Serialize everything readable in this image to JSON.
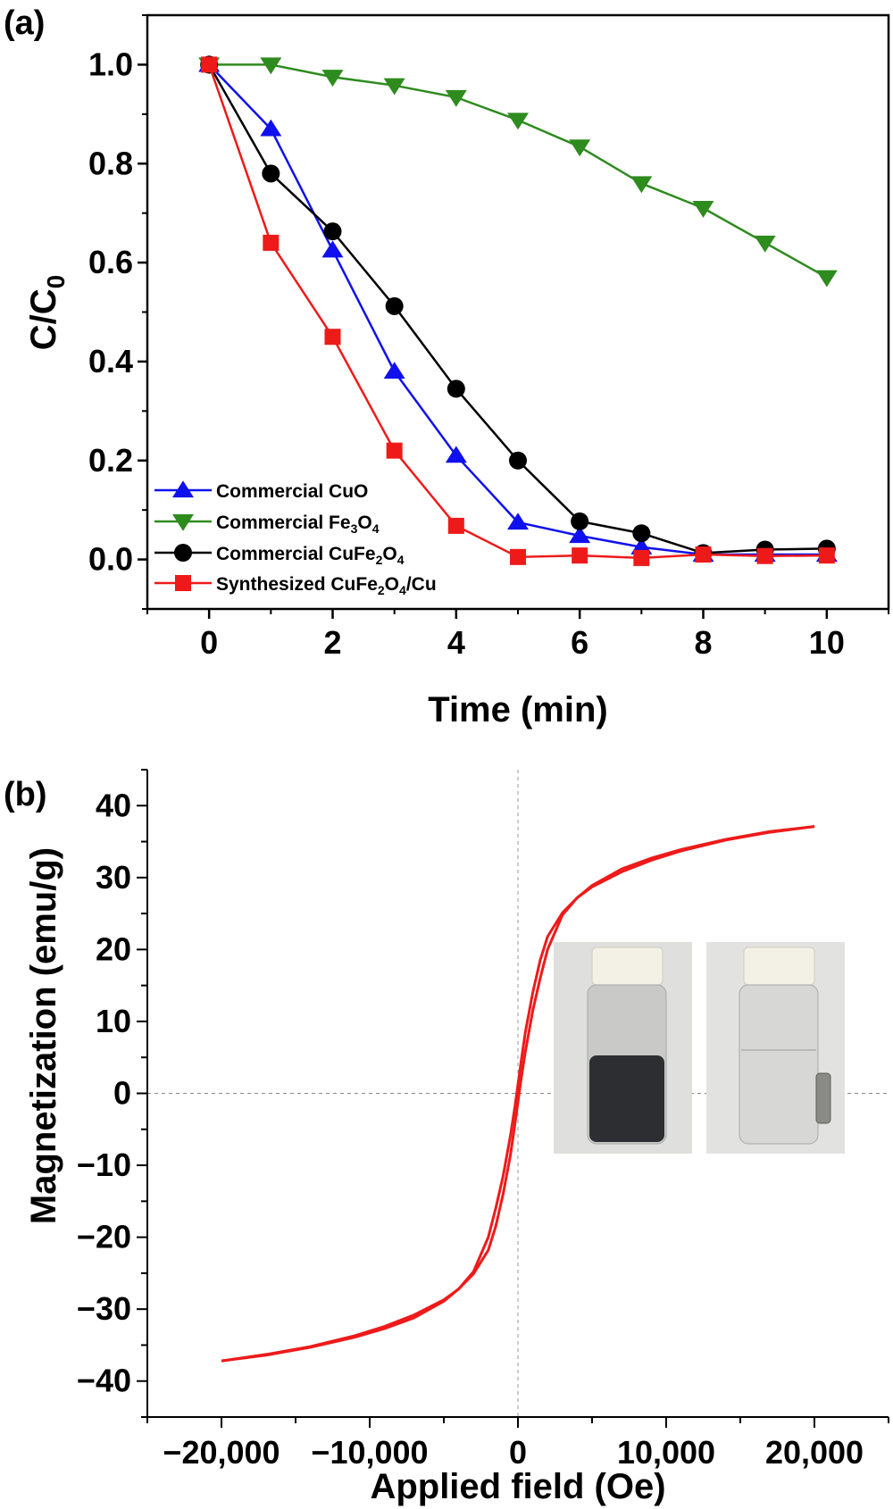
{
  "chart_data": [
    {
      "panel": "(a)",
      "type": "line",
      "xlabel": "Time (min)",
      "ylabel": {
        "main": "C/C",
        "sub": "0"
      },
      "xlim": [
        -1,
        11
      ],
      "ylim": [
        -0.1,
        1.1
      ],
      "xticks": [
        0,
        2,
        4,
        6,
        8,
        10
      ],
      "yticks": [
        0.0,
        0.2,
        0.4,
        0.6,
        0.8,
        1.0
      ],
      "ytick_labels": [
        "0.0",
        "0.2",
        "0.4",
        "0.6",
        "0.8",
        "1.0"
      ],
      "x": [
        0,
        1,
        2,
        3,
        4,
        5,
        6,
        7,
        8,
        9,
        10
      ],
      "legend_position": "bottom-left",
      "series": [
        {
          "name": "Commercial CuO",
          "legend_parts": [
            [
              "Commercial CuO",
              ""
            ]
          ],
          "color": "#1010ee",
          "marker": "triangle-up",
          "values": [
            1.0,
            0.87,
            0.625,
            0.38,
            0.21,
            0.075,
            0.048,
            0.025,
            0.01,
            0.01,
            0.01
          ]
        },
        {
          "name": "Commercial Fe3O4",
          "legend_parts": [
            [
              "Commercial Fe",
              ""
            ],
            [
              "3",
              "sub"
            ],
            [
              "O",
              ""
            ],
            [
              "4",
              "sub"
            ]
          ],
          "color": "#2e8b1e",
          "marker": "triangle-down",
          "values": [
            1.0,
            1.0,
            0.975,
            0.958,
            0.934,
            0.888,
            0.834,
            0.76,
            0.71,
            0.64,
            0.57
          ]
        },
        {
          "name": "Commercial CuFe2O4",
          "legend_parts": [
            [
              "Commercial CuFe",
              ""
            ],
            [
              "2",
              "sub"
            ],
            [
              "O",
              ""
            ],
            [
              "4",
              "sub"
            ]
          ],
          "color": "#000000",
          "marker": "circle",
          "values": [
            1.0,
            0.78,
            0.663,
            0.512,
            0.345,
            0.2,
            0.077,
            0.053,
            0.013,
            0.02,
            0.022
          ]
        },
        {
          "name": "Synthesized CuFe2O4/Cu",
          "legend_parts": [
            [
              "Synthesized CuFe",
              ""
            ],
            [
              "2",
              "sub"
            ],
            [
              "O",
              ""
            ],
            [
              "4",
              "sub"
            ],
            [
              "/Cu",
              ""
            ]
          ],
          "color": "#ee1a1a",
          "marker": "square",
          "values": [
            1.0,
            0.64,
            0.45,
            0.22,
            0.068,
            0.005,
            0.008,
            0.003,
            0.01,
            0.007,
            0.008
          ]
        }
      ]
    },
    {
      "panel": "(b)",
      "type": "line",
      "xlabel": "Applied field (Oe)",
      "ylabel": "Magnetization (emu/g)",
      "xlim": [
        -25000,
        25000
      ],
      "ylim": [
        -45,
        45
      ],
      "xticks": [
        -20000,
        -10000,
        0,
        10000,
        20000
      ],
      "xtick_labels": [
        "−20,000",
        "−10,000",
        "0",
        "10,000",
        "20,000"
      ],
      "yticks": [
        -40,
        -30,
        -20,
        -10,
        0,
        10,
        20,
        30,
        40
      ],
      "ytick_labels": [
        "−40",
        "−30",
        "−20",
        "−10",
        "0",
        "10",
        "20",
        "30",
        "40"
      ],
      "zero_lines": true,
      "color": "#ee1a1a",
      "series": [
        {
          "name": "descending branch",
          "x": [
            20000,
            17000,
            14000,
            11000,
            9000,
            7000,
            5000,
            4000,
            3000,
            2000,
            1500,
            1000,
            500,
            200,
            0,
            -200,
            -500,
            -1000,
            -1500,
            -2000,
            -3000,
            -4000,
            -5000,
            -7000,
            -9000,
            -11000,
            -14000,
            -17000,
            -20000
          ],
          "y": [
            37.1,
            36.3,
            35.2,
            33.7,
            32.4,
            30.8,
            28.7,
            27.2,
            25.1,
            21.8,
            18.5,
            14.0,
            8.5,
            4.2,
            1.2,
            -1.8,
            -5.8,
            -11.5,
            -16.0,
            -20.0,
            -24.8,
            -27.2,
            -28.9,
            -31.2,
            -32.7,
            -33.9,
            -35.3,
            -36.4,
            -37.2
          ]
        },
        {
          "name": "ascending branch",
          "x": [
            -20000,
            -17000,
            -14000,
            -11000,
            -9000,
            -7000,
            -5000,
            -4000,
            -3000,
            -2000,
            -1500,
            -1000,
            -500,
            -200,
            0,
            200,
            500,
            1000,
            1500,
            2000,
            3000,
            4000,
            5000,
            7000,
            9000,
            11000,
            14000,
            17000,
            20000
          ],
          "y": [
            -37.2,
            -36.3,
            -35.2,
            -33.7,
            -32.4,
            -30.8,
            -28.7,
            -27.2,
            -25.1,
            -21.8,
            -18.5,
            -14.0,
            -8.5,
            -4.2,
            -1.2,
            1.8,
            5.8,
            11.5,
            16.0,
            20.0,
            24.8,
            27.2,
            28.9,
            31.2,
            32.7,
            33.9,
            35.3,
            36.4,
            37.1
          ]
        }
      ]
    }
  ]
}
